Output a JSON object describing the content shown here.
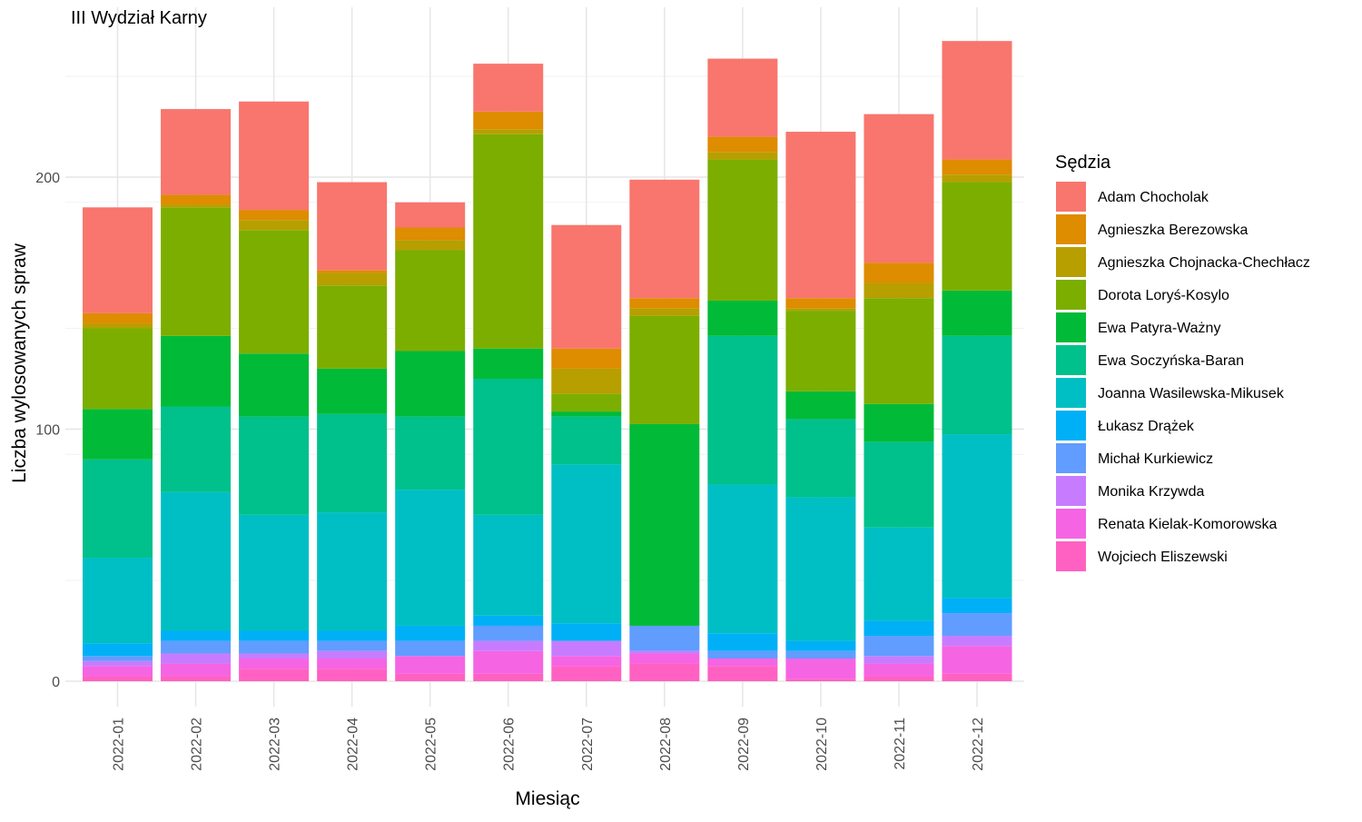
{
  "chart_data": {
    "type": "bar",
    "stacked": true,
    "title": "III Wydział Karny",
    "xlabel": "Miesiąc",
    "ylabel": "Liczba wylosowanych spraw",
    "ylim": [
      -10,
      260
    ],
    "yticks": [
      0,
      100,
      200
    ],
    "grid": true,
    "legend_title": "Sędzia",
    "legend_position": "right",
    "categories": [
      "2022-01",
      "2022-02",
      "2022-03",
      "2022-04",
      "2022-05",
      "2022-06",
      "2022-07",
      "2022-08",
      "2022-09",
      "2022-10",
      "2022-11",
      "2022-12"
    ],
    "series": [
      {
        "name": "Wojciech Eliszewski",
        "color": "#FF61C3",
        "values": [
          2,
          2,
          5,
          5,
          3,
          3,
          6,
          7,
          6,
          1,
          2,
          3
        ]
      },
      {
        "name": "Renata Kielak-Komorowska",
        "color": "#F564E3",
        "values": [
          4,
          5,
          4,
          4,
          7,
          9,
          4,
          4,
          3,
          8,
          5,
          11
        ]
      },
      {
        "name": "Monika Krzywda",
        "color": "#C77CFF",
        "values": [
          2,
          4,
          2,
          3,
          0,
          4,
          6,
          1,
          0,
          0,
          3,
          4
        ]
      },
      {
        "name": "Michał Kurkiewicz",
        "color": "#619CFF",
        "values": [
          2,
          5,
          5,
          4,
          6,
          6,
          0,
          10,
          3,
          3,
          8,
          9
        ]
      },
      {
        "name": "Łukasz Drążek",
        "color": "#00B0F6",
        "values": [
          5,
          4,
          4,
          4,
          6,
          4,
          7,
          0,
          7,
          4,
          6,
          6
        ]
      },
      {
        "name": "Joanna Wasilewska-Mikusek",
        "color": "#00BFC4",
        "values": [
          34,
          55,
          46,
          47,
          54,
          40,
          63,
          0,
          59,
          57,
          37,
          65
        ]
      },
      {
        "name": "Ewa Soczyńska-Baran",
        "color": "#00C08B",
        "values": [
          39,
          34,
          39,
          39,
          29,
          54,
          19,
          0,
          59,
          31,
          34,
          39
        ]
      },
      {
        "name": "Ewa Patyra-Ważny",
        "color": "#00BA38",
        "values": [
          20,
          28,
          25,
          18,
          26,
          12,
          2,
          80,
          14,
          11,
          15,
          18
        ]
      },
      {
        "name": "Dorota Loryś-Kosylo",
        "color": "#7CAE00",
        "values": [
          32,
          51,
          49,
          33,
          40,
          85,
          7,
          43,
          56,
          32,
          42,
          43
        ]
      },
      {
        "name": "Agnieszka Chojnacka-Chechłacz",
        "color": "#B79F00",
        "values": [
          2,
          1,
          4,
          5,
          4,
          2,
          10,
          3,
          3,
          1,
          6,
          3
        ]
      },
      {
        "name": "Agnieszka Berezowska",
        "color": "#DE8C00",
        "values": [
          4,
          4,
          4,
          1,
          5,
          7,
          8,
          4,
          6,
          4,
          8,
          6
        ]
      },
      {
        "name": "Adam Chocholak",
        "color": "#F8766D",
        "values": [
          42,
          34,
          43,
          35,
          10,
          19,
          49,
          47,
          31,
          66,
          59,
          47
        ]
      }
    ],
    "legend_order": [
      "Adam Chocholak",
      "Agnieszka Berezowska",
      "Agnieszka Chojnacka-Chechłacz",
      "Dorota Loryś-Kosylo",
      "Ewa Patyra-Ważny",
      "Ewa Soczyńska-Baran",
      "Joanna Wasilewska-Mikusek",
      "Łukasz Drążek",
      "Michał Kurkiewicz",
      "Monika Krzywda",
      "Renata Kielak-Komorowska",
      "Wojciech Eliszewski"
    ]
  }
}
